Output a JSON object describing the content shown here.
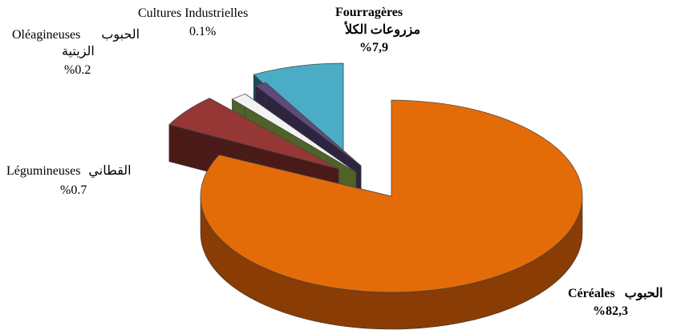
{
  "chart_data": {
    "type": "pie",
    "style": "3d-exploded",
    "slices": [
      {
        "key": "cereales",
        "fr": "Céréales",
        "ar": "الحبوب",
        "pct_label": "%82,3",
        "value": 82.3,
        "color": "#e36c09",
        "side": "#8a3c05",
        "bold": true
      },
      {
        "key": "legumineuses",
        "fr": "Légumineuses",
        "ar": "القطاني",
        "pct_label": "%0.7",
        "value": 0.7,
        "color": "#953735",
        "side": "#4a1a19",
        "bold": false
      },
      {
        "key": "oleagineuses",
        "fr": "Oléagineuses",
        "ar": "الحبوب الزيتية",
        "pct_label": "%0.2",
        "value": 0.2,
        "color": "#f2f2f2",
        "side": "#4f6228",
        "bold": false
      },
      {
        "key": "industrielles",
        "fr": "Cultures Industrielles",
        "ar": "",
        "pct_label": "0.1%",
        "value": 0.1,
        "color": "#604a7b",
        "side": "#2f2440",
        "bold": false
      },
      {
        "key": "fourrageres",
        "fr": "Fourragères",
        "ar": "مزروعات الكلأ",
        "pct_label": "%7,9",
        "value": 7.9,
        "color": "#4bacc6",
        "side": "#1f4e5c",
        "bold": true
      }
    ]
  },
  "labels": {
    "cereales": {
      "line1_ar": "الحبوب",
      "line1_fr": "Céréales",
      "line2": "%82,3"
    },
    "legumineuses": {
      "line1_fr": "Légumineuses",
      "line1_ar": "القطاني",
      "line2": "%0.7"
    },
    "oleagineuses": {
      "line1_fr": "Oléagineuses",
      "line1_ar": "الحبوب",
      "line2": "الزيتية",
      "line3": "%0.2"
    },
    "industrielles": {
      "line1": "Cultures Industrielles",
      "line2": "0.1%"
    },
    "fourrageres": {
      "line1": "Fourragères",
      "line2": "مزروعات الكلأ",
      "line3": "%7,9"
    }
  }
}
